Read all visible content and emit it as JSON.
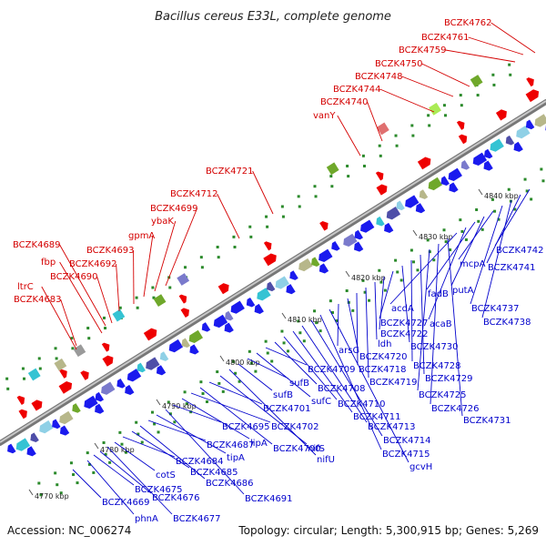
{
  "title": "Bacillus cereus E33L, complete genome",
  "footer": {
    "accession": "Accession: NC_006274",
    "summary": "Topology: circular; Length: 5,300,915 bp; Genes: 5,269"
  },
  "colors": {
    "backbone": "#9a9a9a",
    "upper_label": "#d40000",
    "lower_label": "#0000cc",
    "forward_gene": "#ee0000",
    "reverse_gene": "#1a1aee",
    "marker": "#2b8a2b"
  },
  "ticks": [
    "4770 kbp",
    "4780 kbp",
    "4790 kbp",
    "4800 kbp",
    "4810 kbp",
    "4820 kbp",
    "4830 kbp",
    "4840 kbp"
  ],
  "upper_labels": [
    "ltrC",
    "BCZK4683",
    "fbp",
    "BCZK4690",
    "BCZK4689",
    "BCZK4692",
    "BCZK4693",
    "gpmA",
    "ybaK",
    "BCZK4699",
    "BCZK4712",
    "BCZK4721",
    "vanY",
    "BCZK4740",
    "BCZK4744",
    "BCZK4748",
    "BCZK4750",
    "BCZK4759",
    "BCZK4761",
    "BCZK4762"
  ],
  "lower_labels": [
    "BCZK4669",
    "phnA",
    "BCZK4675",
    "BCZK4676",
    "BCZK4677",
    "cotS",
    "BCZK4684",
    "BCZK4685",
    "BCZK4686",
    "BCZK4687",
    "tipA",
    "BCZK4691",
    "BCZK4695",
    "lipA",
    "BCZK4702",
    "BCZK4700",
    "BCZK4701",
    "nifS",
    "nifU",
    "sufB",
    "sufB",
    "sufC",
    "BCZK4709",
    "BCZK4708",
    "BCZK4710",
    "BCZK4711",
    "BCZK4713",
    "BCZK4714",
    "BCZK4715",
    "gcvH",
    "arsC",
    "BCZK4720",
    "BCZK4718",
    "BCZK4719",
    "ldh",
    "BCZK4722",
    "BCZK4727",
    "BCZK4730",
    "BCZK4728",
    "BCZK4729",
    "BCZK4725",
    "BCZK4726",
    "BCZK4731",
    "acdA",
    "acaB",
    "fadB",
    "putA",
    "mcpA",
    "BCZK4737",
    "BCZK4738",
    "BCZK4741",
    "BCZK4742"
  ]
}
